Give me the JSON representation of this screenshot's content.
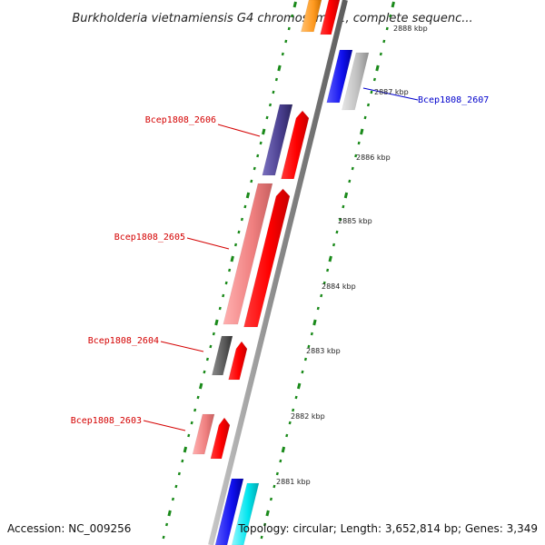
{
  "title": "Burkholderia vietnamiensis G4 chromosome 1, complete sequenc...",
  "footer": {
    "accession": "Accession: NC_009256",
    "stats": "Topology: circular; Length: 3,652,814 bp; Genes: 3,349"
  },
  "tick_labels": [
    "2888 kbp",
    "2887 kbp",
    "2886 kbp",
    "2885 kbp",
    "2884 kbp",
    "2883 kbp",
    "2882 kbp",
    "2881 kbp"
  ],
  "gene_labels": [
    {
      "text": "Bcep1808_2606",
      "color": "#d40000"
    },
    {
      "text": "Bcep1808_2605",
      "color": "#d40000"
    },
    {
      "text": "Bcep1808_2604",
      "color": "#d40000"
    },
    {
      "text": "Bcep1808_2603",
      "color": "#d40000"
    },
    {
      "text": "Bcep1808_2607",
      "color": "#0000cc"
    }
  ],
  "colors": {
    "backbone": "#8a8a8a",
    "tick_green": "#1a8a1a",
    "red": "#ff1010",
    "pink": "#f08080",
    "navy": "#4a3f8f",
    "dark_gray": "#5a5a5a",
    "blue": "#1010ee",
    "light_gray": "#bdbdbd",
    "cyan": "#00e5ee",
    "orange": "#ff9a20"
  }
}
